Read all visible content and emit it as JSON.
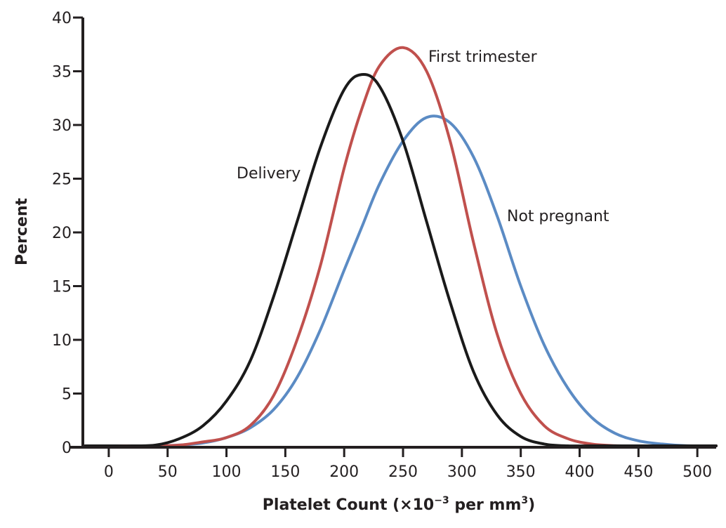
{
  "chart_data": {
    "type": "line",
    "title": "",
    "xlabel": "Platelet Count (×10⁻³ per mm³)",
    "xlabel_parts": {
      "main": "Platelet Count (×10",
      "sup1": "−3",
      "mid": " per mm",
      "sup2": "3",
      "end": ")"
    },
    "ylabel": "Percent",
    "xlim": [
      -22,
      516
    ],
    "ylim": [
      0,
      40
    ],
    "x_ticks": [
      0,
      50,
      100,
      150,
      200,
      250,
      300,
      350,
      400,
      450,
      500
    ],
    "x_tick_labels": [
      "0",
      "50",
      "100",
      "150",
      "200",
      "250",
      "300",
      "350",
      "400",
      "450",
      "500"
    ],
    "y_ticks": [
      0,
      5,
      10,
      15,
      20,
      25,
      30,
      35,
      40
    ],
    "y_tick_labels": [
      "0",
      "5",
      "10",
      "15",
      "20",
      "25",
      "30",
      "35",
      "40"
    ],
    "grid": false,
    "legend": "inline labels",
    "x": [
      -20,
      0,
      20,
      40,
      60,
      80,
      100,
      120,
      140,
      160,
      180,
      200,
      215,
      230,
      250,
      270,
      290,
      310,
      330,
      350,
      370,
      390,
      410,
      430,
      450,
      470,
      490,
      516
    ],
    "series": [
      {
        "name": "Delivery",
        "color": "#1a1a1a",
        "label": "Delivery",
        "values": [
          0.1,
          0.1,
          0.1,
          0.2,
          0.8,
          2.0,
          4.3,
          8.0,
          14.0,
          21.0,
          28.0,
          33.3,
          34.7,
          33.6,
          28.5,
          21.0,
          13.5,
          7.0,
          3.0,
          1.0,
          0.3,
          0.05,
          0.0,
          0.0,
          0.0,
          0.0,
          0.0,
          0.0
        ]
      },
      {
        "name": "First trimester",
        "color": "#c0504d",
        "label": "First trimester",
        "values": [
          0.1,
          0.1,
          0.1,
          0.1,
          0.2,
          0.5,
          0.9,
          2.0,
          4.8,
          10.0,
          17.0,
          26.0,
          31.5,
          35.5,
          37.2,
          35.0,
          28.5,
          19.0,
          10.5,
          5.0,
          2.0,
          0.8,
          0.3,
          0.15,
          0.1,
          0.05,
          0.02,
          0.0
        ]
      },
      {
        "name": "Not pregnant",
        "color": "#5b8bc4",
        "label": "Not pregnant",
        "values": [
          0.1,
          0.1,
          0.1,
          0.1,
          0.2,
          0.4,
          0.9,
          1.8,
          3.5,
          6.5,
          11.0,
          16.5,
          20.5,
          24.5,
          28.5,
          30.7,
          30.2,
          27.0,
          21.5,
          15.0,
          9.5,
          5.5,
          2.8,
          1.3,
          0.6,
          0.3,
          0.15,
          0.05
        ]
      }
    ]
  }
}
